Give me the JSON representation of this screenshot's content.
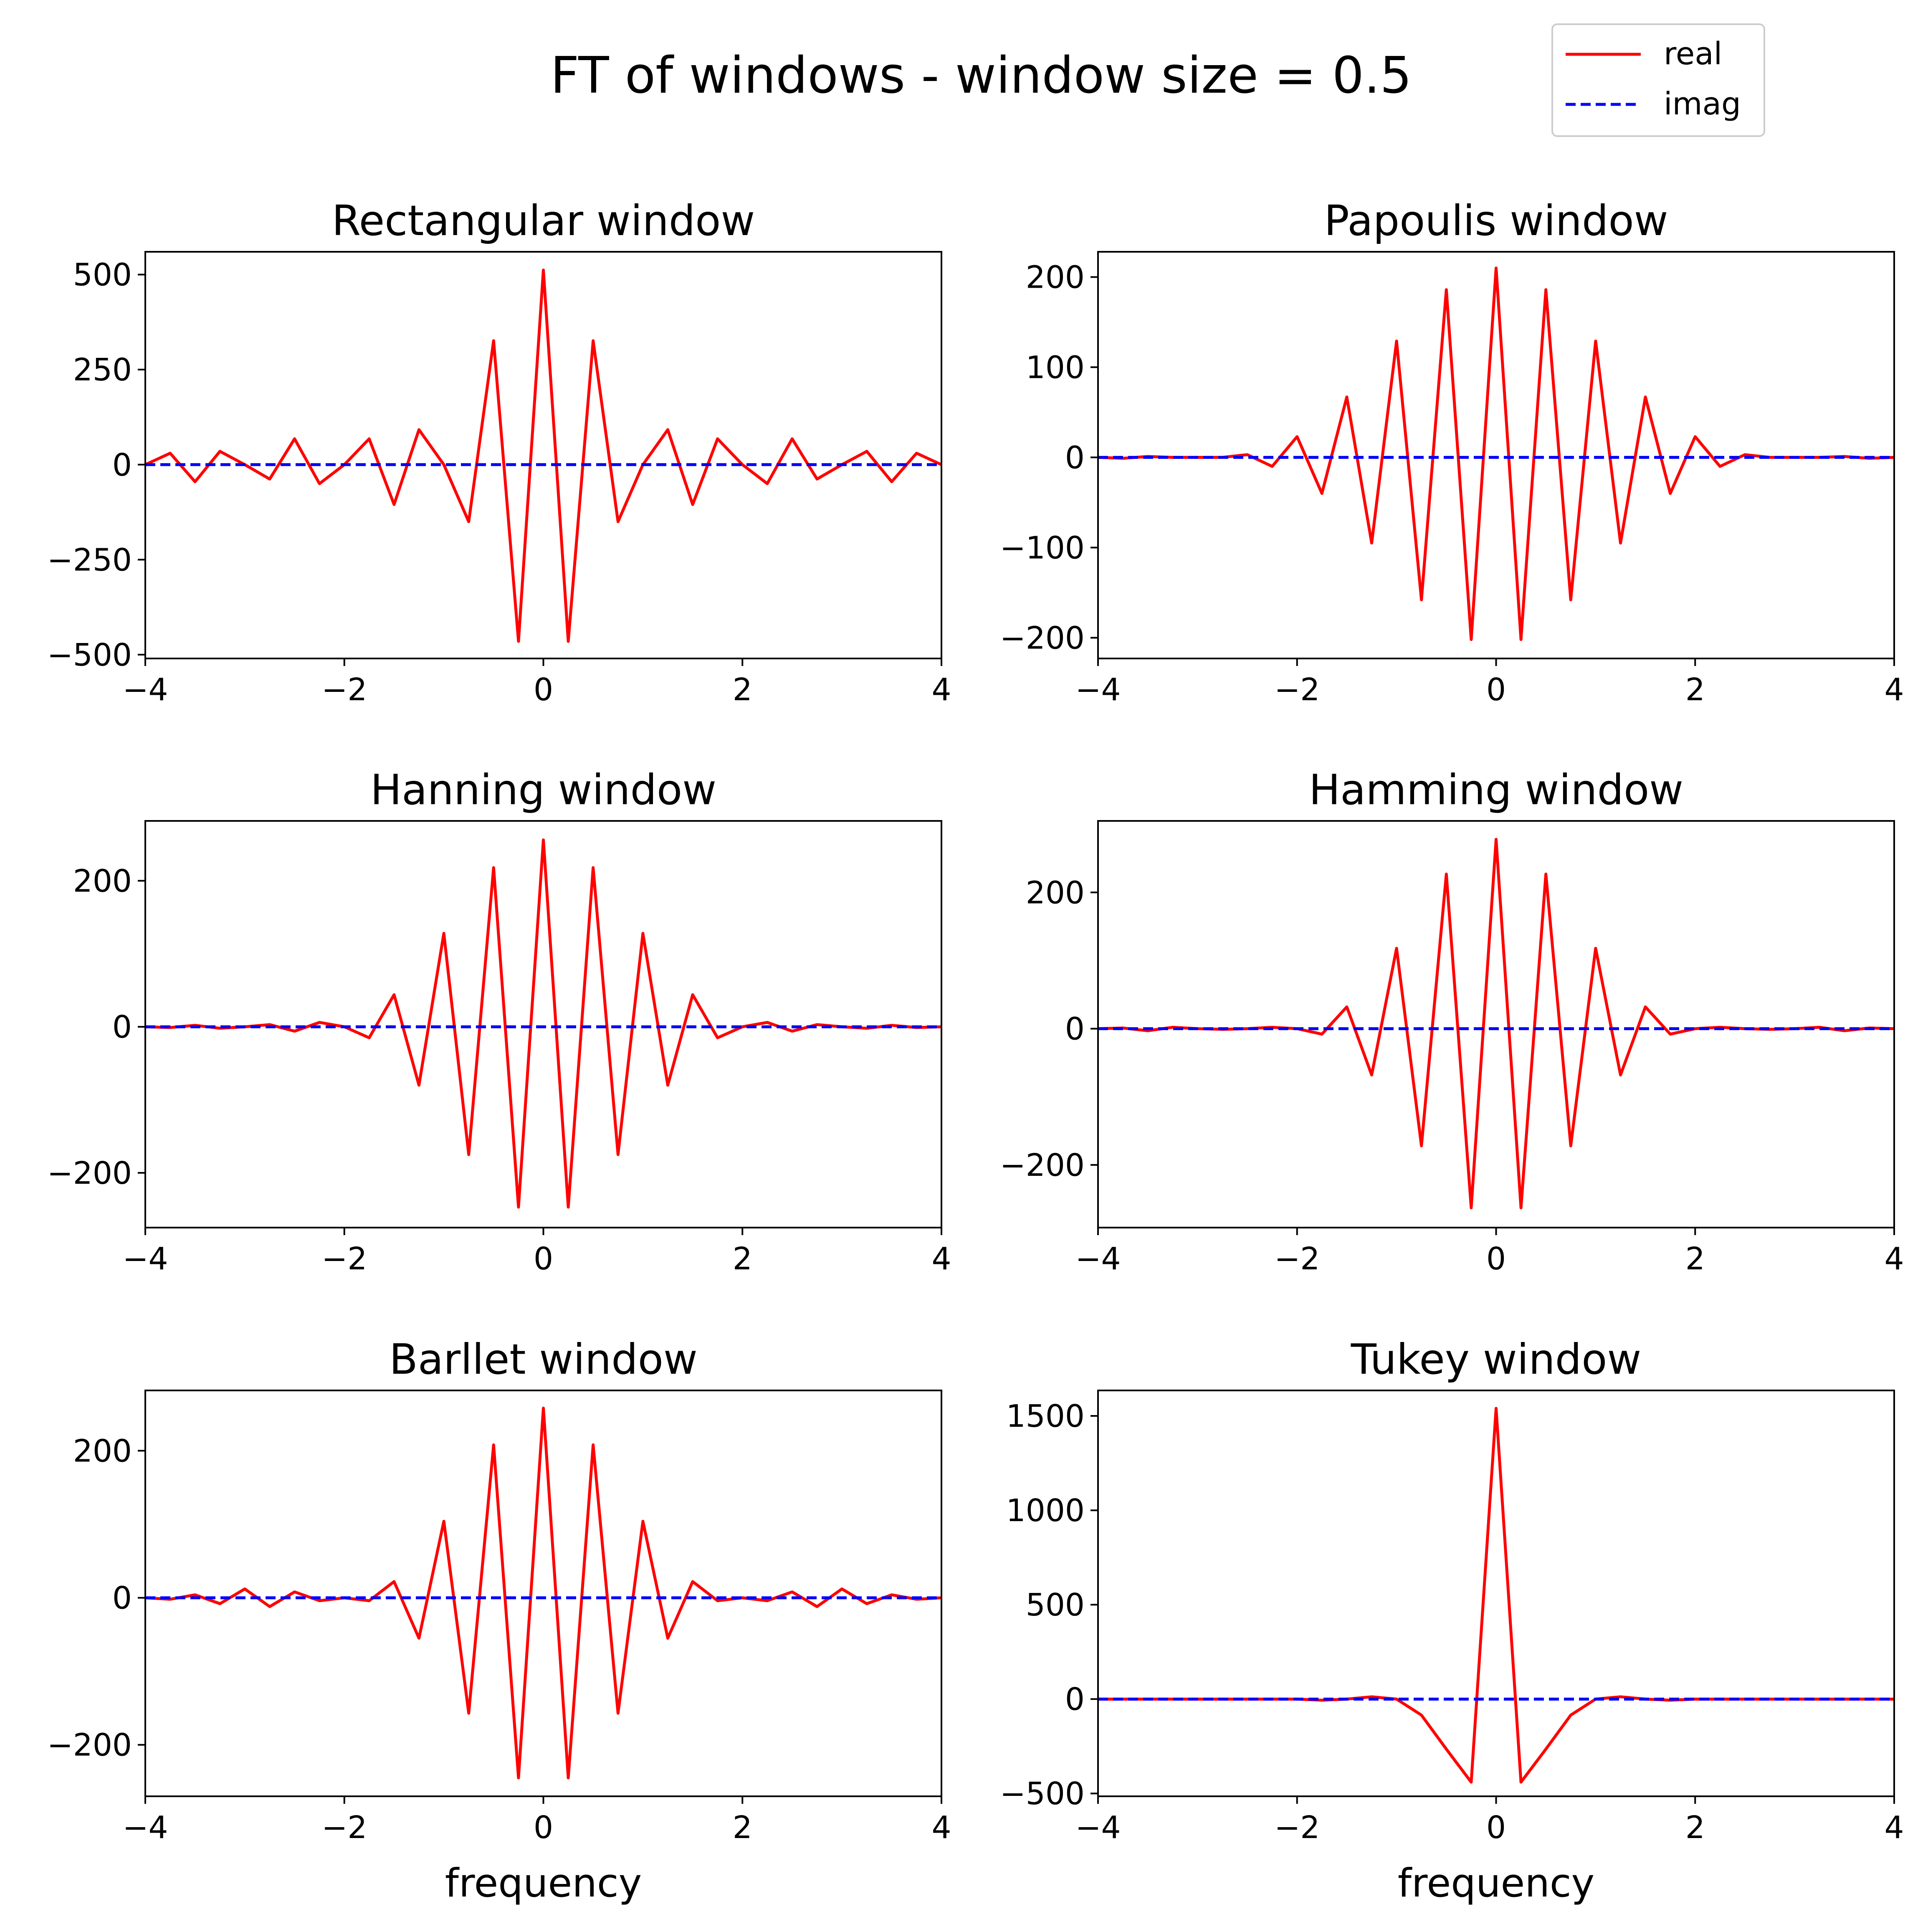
{
  "figure": {
    "title": "FT of windows - window size = 0.5",
    "colors": {
      "real": "#ff0000",
      "imag": "#0000ff"
    },
    "legend": {
      "placement": "top-right",
      "entries": [
        {
          "name": "real",
          "color": "#ff0000",
          "style": "solid"
        },
        {
          "name": "imag",
          "color": "#0000ff",
          "style": "dashed"
        }
      ]
    }
  },
  "chart_data": [
    {
      "type": "line",
      "title": "Rectangular window",
      "xlabel": "",
      "xlim": [
        -4,
        4
      ],
      "ylim": [
        -510,
        560
      ],
      "xticks": [
        -4,
        -2,
        0,
        2,
        4
      ],
      "yticks": [
        -500,
        -250,
        0,
        250,
        500
      ],
      "x": [
        -4,
        -3.75,
        -3.5,
        -3.25,
        -3,
        -2.75,
        -2.5,
        -2.25,
        -2,
        -1.75,
        -1.5,
        -1.25,
        -1,
        -0.75,
        -0.5,
        -0.25,
        0,
        0.25,
        0.5,
        0.75,
        1,
        1.25,
        1.5,
        1.75,
        2,
        2.25,
        2.5,
        2.75,
        3,
        3.25,
        3.5,
        3.75,
        4
      ],
      "series": [
        {
          "name": "real",
          "values": [
            0,
            30,
            -45,
            35,
            0,
            -38,
            68,
            -50,
            0,
            68,
            -105,
            92,
            0,
            -150,
            326,
            -465,
            512,
            -465,
            326,
            -150,
            0,
            92,
            -105,
            68,
            0,
            -50,
            68,
            -38,
            0,
            35,
            -45,
            30,
            0
          ]
        },
        {
          "name": "imag",
          "values": [
            0,
            0,
            0,
            0,
            0,
            0,
            0,
            0,
            0,
            0,
            0,
            0,
            0,
            0,
            0,
            0,
            0,
            0,
            0,
            0,
            0,
            0,
            0,
            0,
            0,
            0,
            0,
            0,
            0,
            0,
            0,
            0,
            0
          ]
        }
      ]
    },
    {
      "type": "line",
      "title": "Papoulis window",
      "xlabel": "",
      "xlim": [
        -4,
        4
      ],
      "ylim": [
        -223,
        228
      ],
      "xticks": [
        -4,
        -2,
        0,
        2,
        4
      ],
      "yticks": [
        -200,
        -100,
        0,
        100,
        200
      ],
      "x": [
        -4,
        -3.75,
        -3.5,
        -3.25,
        -3,
        -2.75,
        -2.5,
        -2.25,
        -2,
        -1.75,
        -1.5,
        -1.25,
        -1,
        -0.75,
        -0.5,
        -0.25,
        0,
        0.25,
        0.5,
        0.75,
        1,
        1.25,
        1.5,
        1.75,
        2,
        2.25,
        2.5,
        2.75,
        3,
        3.25,
        3.5,
        3.75,
        4
      ],
      "series": [
        {
          "name": "real",
          "values": [
            0,
            -1,
            1,
            0,
            0,
            0,
            3,
            -10,
            23,
            -40,
            67,
            -95,
            129,
            -158,
            186,
            -202,
            210,
            -202,
            186,
            -158,
            129,
            -95,
            67,
            -40,
            23,
            -10,
            3,
            0,
            0,
            0,
            1,
            -1,
            0
          ]
        },
        {
          "name": "imag",
          "values": [
            0,
            0,
            0,
            0,
            0,
            0,
            0,
            0,
            0,
            0,
            0,
            0,
            0,
            0,
            0,
            0,
            0,
            0,
            0,
            0,
            0,
            0,
            0,
            0,
            0,
            0,
            0,
            0,
            0,
            0,
            0,
            0,
            0
          ]
        }
      ]
    },
    {
      "type": "line",
      "title": "Hanning window",
      "xlabel": "",
      "xlim": [
        -4,
        4
      ],
      "ylim": [
        -275,
        282
      ],
      "xticks": [
        -4,
        -2,
        0,
        2,
        4
      ],
      "yticks": [
        -200,
        0,
        200
      ],
      "x": [
        -4,
        -3.75,
        -3.5,
        -3.25,
        -3,
        -2.75,
        -2.5,
        -2.25,
        -2,
        -1.75,
        -1.5,
        -1.25,
        -1,
        -0.75,
        -0.5,
        -0.25,
        0,
        0.25,
        0.5,
        0.75,
        1,
        1.25,
        1.5,
        1.75,
        2,
        2.25,
        2.5,
        2.75,
        3,
        3.25,
        3.5,
        3.75,
        4
      ],
      "series": [
        {
          "name": "real",
          "values": [
            0,
            -1,
            2,
            -2,
            0,
            3,
            -6,
            6,
            0,
            -15,
            44,
            -80,
            128,
            -175,
            218,
            -247,
            256,
            -247,
            218,
            -175,
            128,
            -80,
            44,
            -15,
            0,
            6,
            -6,
            3,
            0,
            -2,
            2,
            -1,
            0
          ]
        },
        {
          "name": "imag",
          "values": [
            0,
            0,
            0,
            0,
            0,
            0,
            0,
            0,
            0,
            0,
            0,
            0,
            0,
            0,
            0,
            0,
            0,
            0,
            0,
            0,
            0,
            0,
            0,
            0,
            0,
            0,
            0,
            0,
            0,
            0,
            0,
            0,
            0
          ]
        }
      ]
    },
    {
      "type": "line",
      "title": "Hamming window",
      "xlabel": "",
      "xlim": [
        -4,
        4
      ],
      "ylim": [
        -292,
        305
      ],
      "xticks": [
        -4,
        -2,
        0,
        2,
        4
      ],
      "yticks": [
        -200,
        0,
        200
      ],
      "x": [
        -4,
        -3.75,
        -3.5,
        -3.25,
        -3,
        -2.75,
        -2.5,
        -2.25,
        -2,
        -1.75,
        -1.5,
        -1.25,
        -1,
        -0.75,
        -0.5,
        -0.25,
        0,
        0.25,
        0.5,
        0.75,
        1,
        1.25,
        1.5,
        1.75,
        2,
        2.25,
        2.5,
        2.75,
        3,
        3.25,
        3.5,
        3.75,
        4
      ],
      "series": [
        {
          "name": "real",
          "values": [
            0,
            1,
            -3,
            2,
            0,
            -1,
            0,
            2,
            0,
            -8,
            32,
            -68,
            118,
            -172,
            227,
            -263,
            278,
            -263,
            227,
            -172,
            118,
            -68,
            32,
            -8,
            0,
            2,
            0,
            -1,
            0,
            2,
            -3,
            1,
            0
          ]
        },
        {
          "name": "imag",
          "values": [
            0,
            0,
            0,
            0,
            0,
            0,
            0,
            0,
            0,
            0,
            0,
            0,
            0,
            0,
            0,
            0,
            0,
            0,
            0,
            0,
            0,
            0,
            0,
            0,
            0,
            0,
            0,
            0,
            0,
            0,
            0,
            0,
            0
          ]
        }
      ]
    },
    {
      "type": "line",
      "title": "Barllet window",
      "xlabel": "frequency",
      "xlim": [
        -4,
        4
      ],
      "ylim": [
        -270,
        282
      ],
      "xticks": [
        -4,
        -2,
        0,
        2,
        4
      ],
      "yticks": [
        -200,
        0,
        200
      ],
      "x": [
        -4,
        -3.75,
        -3.5,
        -3.25,
        -3,
        -2.75,
        -2.5,
        -2.25,
        -2,
        -1.75,
        -1.5,
        -1.25,
        -1,
        -0.75,
        -0.5,
        -0.25,
        0,
        0.25,
        0.5,
        0.75,
        1,
        1.25,
        1.5,
        1.75,
        2,
        2.25,
        2.5,
        2.75,
        3,
        3.25,
        3.5,
        3.75,
        4
      ],
      "series": [
        {
          "name": "real",
          "values": [
            0,
            -2,
            4,
            -8,
            12,
            -12,
            8,
            -4,
            0,
            -4,
            22,
            -55,
            104,
            -157,
            208,
            -245,
            258,
            -245,
            208,
            -157,
            104,
            -55,
            22,
            -4,
            0,
            -4,
            8,
            -12,
            12,
            -8,
            4,
            -2,
            0
          ]
        },
        {
          "name": "imag",
          "values": [
            0,
            0,
            0,
            0,
            0,
            0,
            0,
            0,
            0,
            0,
            0,
            0,
            0,
            0,
            0,
            0,
            0,
            0,
            0,
            0,
            0,
            0,
            0,
            0,
            0,
            0,
            0,
            0,
            0,
            0,
            0,
            0,
            0
          ]
        }
      ]
    },
    {
      "type": "line",
      "title": "Tukey window",
      "xlabel": "frequency",
      "xlim": [
        -4,
        4
      ],
      "ylim": [
        -515,
        1635
      ],
      "xticks": [
        -4,
        -2,
        0,
        2,
        4
      ],
      "yticks": [
        -500,
        0,
        500,
        1000,
        1500
      ],
      "x": [
        -4,
        -3.75,
        -3.5,
        -3.25,
        -3,
        -2.75,
        -2.5,
        -2.25,
        -2,
        -1.75,
        -1.5,
        -1.25,
        -1,
        -0.75,
        -0.5,
        -0.25,
        0,
        0.25,
        0.5,
        0.75,
        1,
        1.25,
        1.5,
        1.75,
        2,
        2.25,
        2.5,
        2.75,
        3,
        3.25,
        3.5,
        3.75,
        4
      ],
      "series": [
        {
          "name": "real",
          "values": [
            0,
            0,
            0,
            0,
            0,
            0,
            0,
            0,
            0,
            -6,
            0,
            12,
            0,
            -85,
            -265,
            -440,
            1540,
            -440,
            -265,
            -85,
            0,
            12,
            0,
            -6,
            0,
            0,
            0,
            0,
            0,
            0,
            0,
            0,
            0
          ]
        },
        {
          "name": "imag",
          "values": [
            0,
            0,
            0,
            0,
            0,
            0,
            0,
            0,
            0,
            0,
            0,
            0,
            0,
            0,
            0,
            0,
            0,
            0,
            0,
            0,
            0,
            0,
            0,
            0,
            0,
            0,
            0,
            0,
            0,
            0,
            0,
            0,
            0
          ]
        }
      ]
    }
  ]
}
